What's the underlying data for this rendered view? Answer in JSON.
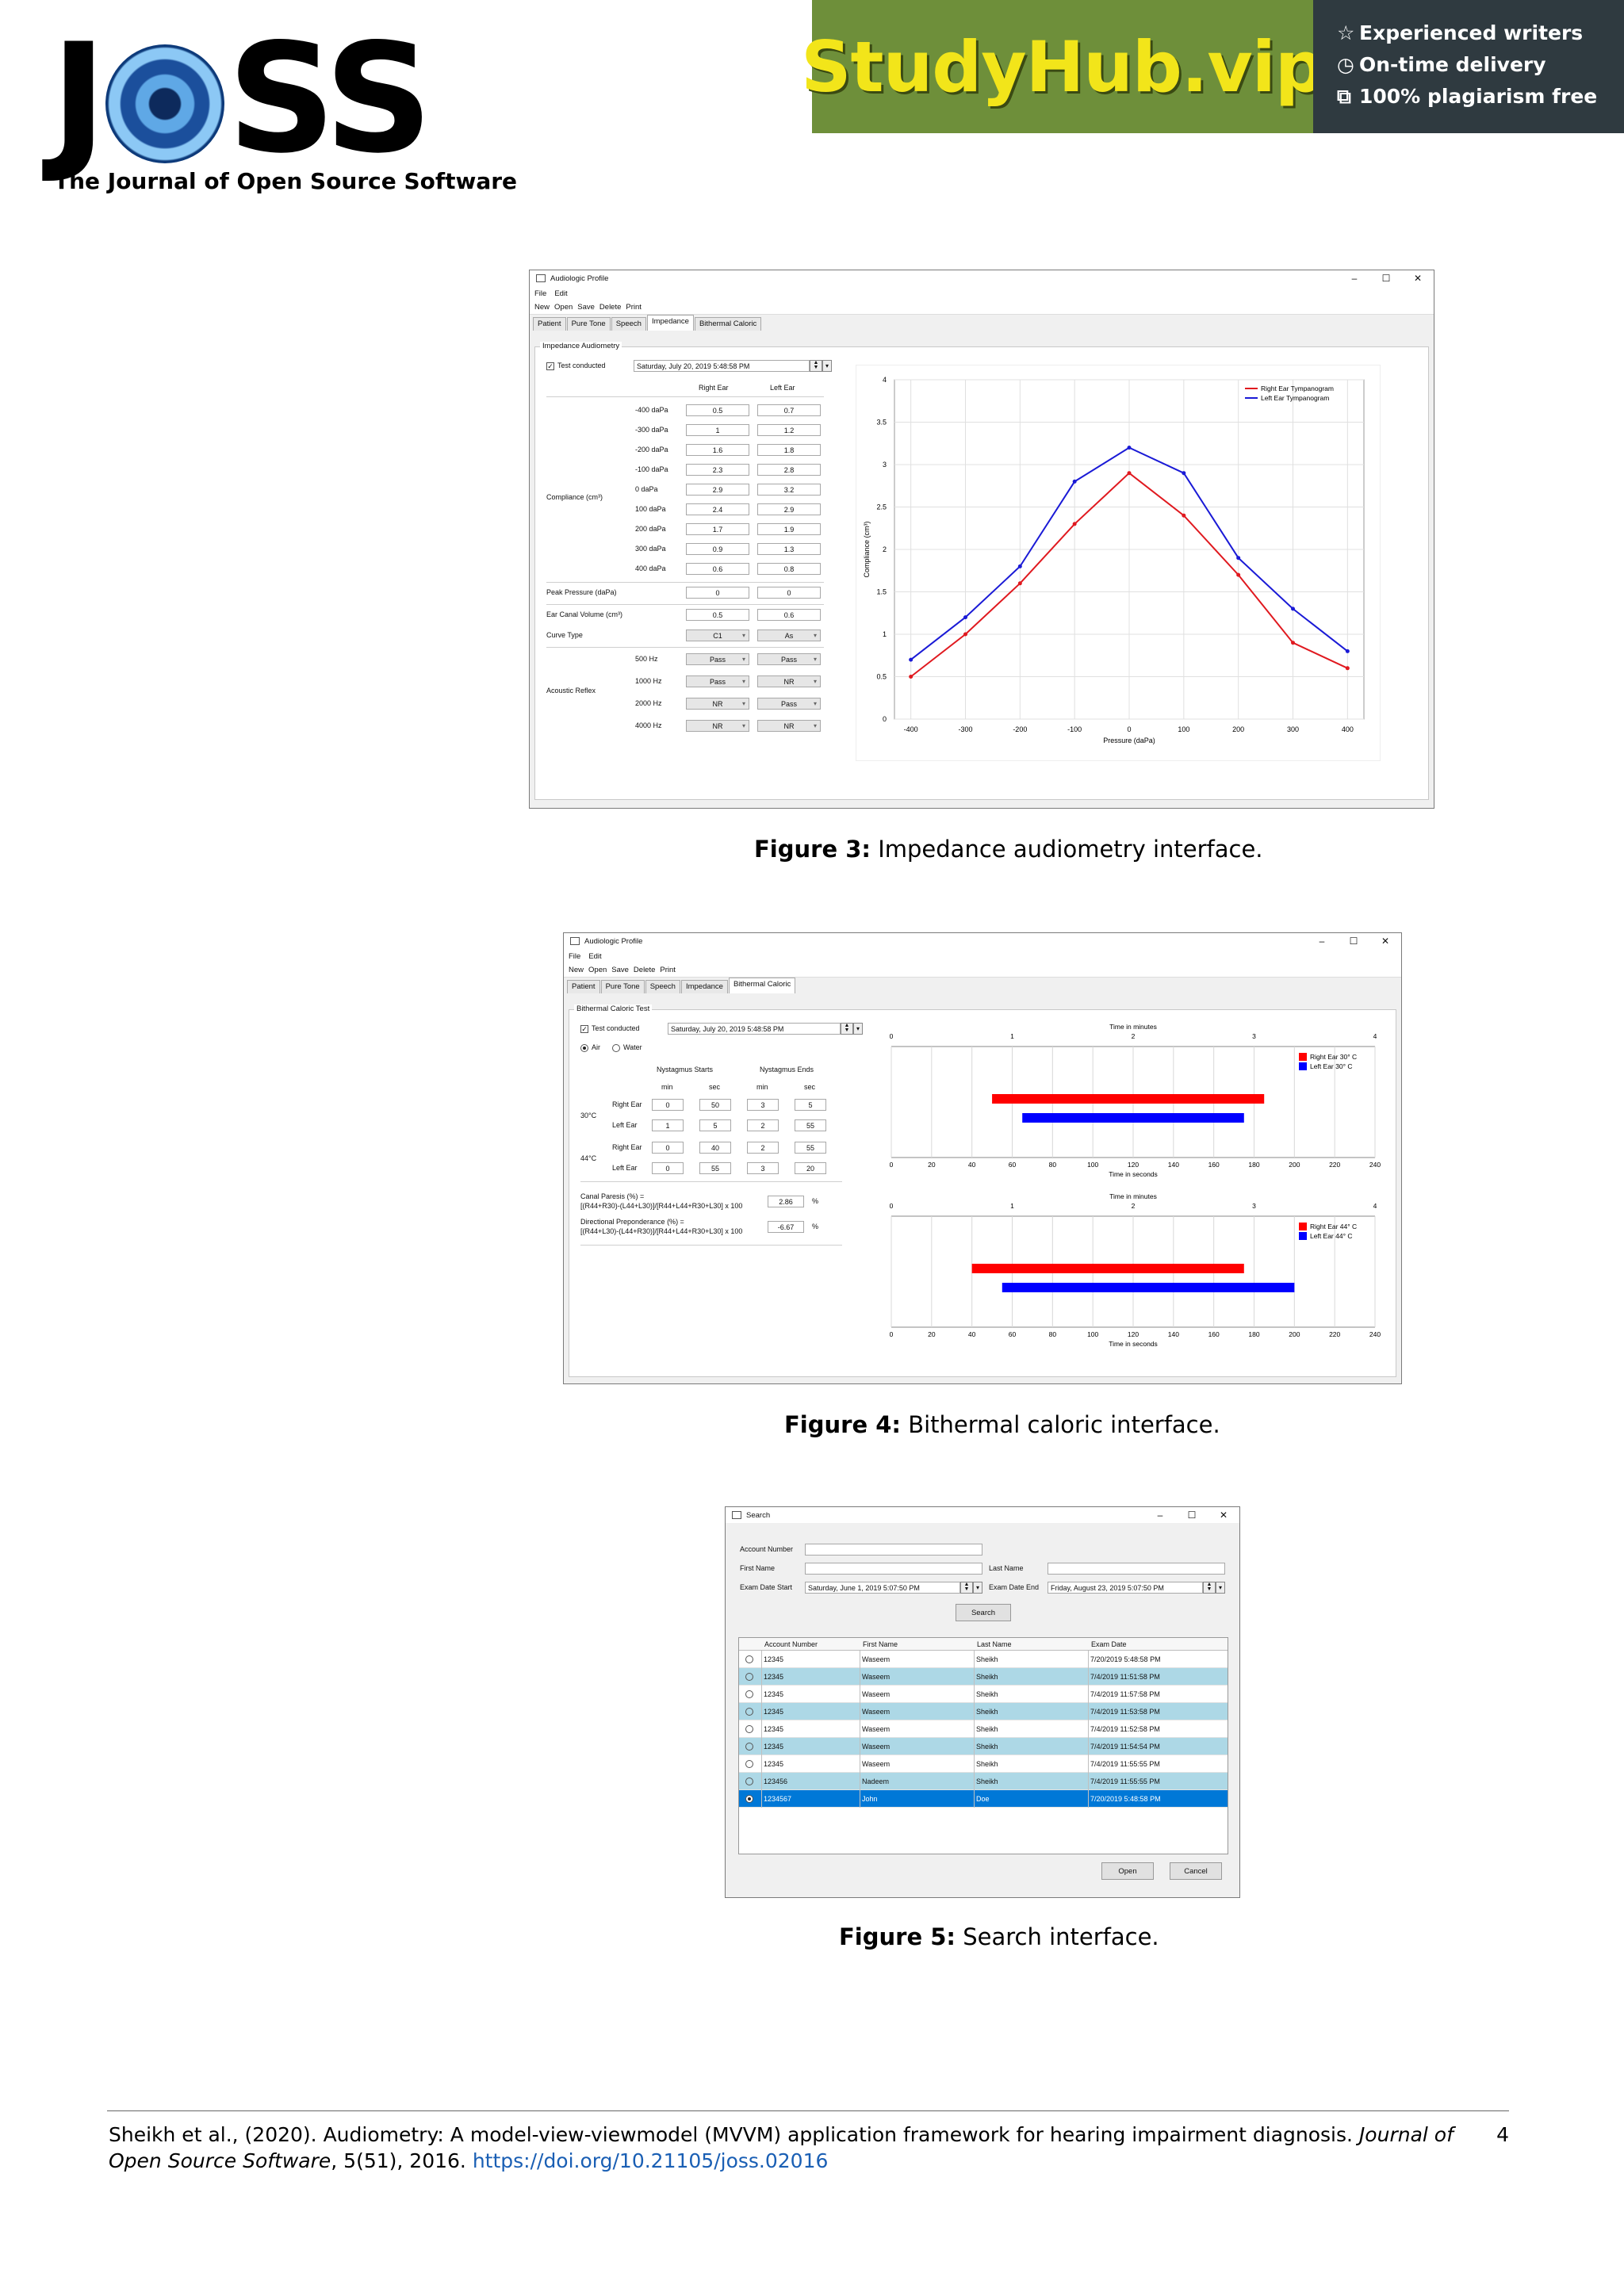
{
  "header": {
    "logo_text": "JOSS",
    "tagline": "The Journal of Open Source Software",
    "ad": {
      "brand": "StudyHub.vip",
      "lines": [
        "Experienced writers",
        "On-time delivery",
        "100% plagiarism free"
      ],
      "icons": [
        "star-icon",
        "clock-icon",
        "copy-icon"
      ]
    }
  },
  "window": {
    "title": "Audiologic Profile",
    "menu": [
      "File",
      "Edit"
    ],
    "toolbar": [
      "New",
      "Open",
      "Save",
      "Delete",
      "Print"
    ],
    "tabs": [
      "Patient",
      "Pure Tone",
      "Speech",
      "Impedance",
      "Bithermal Caloric"
    ]
  },
  "impedance": {
    "group": "Impedance Audiometry",
    "test_conducted": "Test conducted",
    "date": "Saturday, July 20, 2019 5:48:58 PM",
    "col_right": "Right Ear",
    "col_left": "Left Ear",
    "compliance_label": "Compliance (cm³)",
    "rows": [
      {
        "p": "-400 daPa",
        "r": "0.5",
        "l": "0.7"
      },
      {
        "p": "-300 daPa",
        "r": "1",
        "l": "1.2"
      },
      {
        "p": "-200 daPa",
        "r": "1.6",
        "l": "1.8"
      },
      {
        "p": "-100 daPa",
        "r": "2.3",
        "l": "2.8"
      },
      {
        "p": "0 daPa",
        "r": "2.9",
        "l": "3.2"
      },
      {
        "p": "100 daPa",
        "r": "2.4",
        "l": "2.9"
      },
      {
        "p": "200 daPa",
        "r": "1.7",
        "l": "1.9"
      },
      {
        "p": "300 daPa",
        "r": "0.9",
        "l": "1.3"
      },
      {
        "p": "400 daPa",
        "r": "0.6",
        "l": "0.8"
      }
    ],
    "peak_label": "Peak Pressure (daPa)",
    "peak_r": "0",
    "peak_l": "0",
    "ecv_label": "Ear Canal Volume (cm³)",
    "ecv_r": "0.5",
    "ecv_l": "0.6",
    "curve_label": "Curve Type",
    "curve_r": "C1",
    "curve_l": "As",
    "reflex_label": "Acoustic Reflex",
    "reflex": [
      {
        "f": "500 Hz",
        "r": "Pass",
        "l": "Pass"
      },
      {
        "f": "1000 Hz",
        "r": "Pass",
        "l": "NR"
      },
      {
        "f": "2000 Hz",
        "r": "NR",
        "l": "Pass"
      },
      {
        "f": "4000 Hz",
        "r": "NR",
        "l": "NR"
      }
    ]
  },
  "caloric": {
    "group": "Bithermal Caloric Test",
    "test_conducted": "Test conducted",
    "date": "Saturday, July 20, 2019 5:48:58 PM",
    "air": "Air",
    "water": "Water",
    "col_start": "Nystagmus Starts",
    "col_end": "Nystagmus Ends",
    "min": "min",
    "sec": "sec",
    "t30": "30°C",
    "t44": "44°C",
    "right_ear": "Right Ear",
    "left_ear": "Left Ear",
    "r30": [
      "0",
      "50",
      "3",
      "5"
    ],
    "l30": [
      "1",
      "5",
      "2",
      "55"
    ],
    "r44": [
      "0",
      "40",
      "2",
      "55"
    ],
    "l44": [
      "0",
      "55",
      "3",
      "20"
    ],
    "cp_label1": "Canal Paresis (%) =",
    "cp_label2": "[(R44+R30)-(L44+L30)]/[R44+L44+R30+L30] x 100",
    "cp_value": "2.86",
    "dp_label1": "Directional Preponderance (%) =",
    "dp_label2": "[(R44+L30)-(L44+R30)]/[R44+L44+R30+L30] x 100",
    "dp_value": "-6.67",
    "pct": "%"
  },
  "search": {
    "title": "Search",
    "account_label": "Account Number",
    "first_label": "First Name",
    "last_label": "Last Name",
    "start_label": "Exam Date Start",
    "start_value": "Saturday, June 1, 2019 5:07:50 PM",
    "end_label": "Exam Date End",
    "end_value": "Friday, August 23, 2019 5:07:50 PM",
    "search_button": "Search",
    "columns": [
      "Account Number",
      "First Name",
      "Last Name",
      "Exam Date"
    ],
    "rows": [
      [
        "12345",
        "Waseem",
        "Sheikh",
        "7/20/2019 5:48:58 PM"
      ],
      [
        "12345",
        "Waseem",
        "Sheikh",
        "7/4/2019 11:51:58 PM"
      ],
      [
        "12345",
        "Waseem",
        "Sheikh",
        "7/4/2019 11:57:58 PM"
      ],
      [
        "12345",
        "Waseem",
        "Sheikh",
        "7/4/2019 11:53:58 PM"
      ],
      [
        "12345",
        "Waseem",
        "Sheikh",
        "7/4/2019 11:52:58 PM"
      ],
      [
        "12345",
        "Waseem",
        "Sheikh",
        "7/4/2019 11:54:54 PM"
      ],
      [
        "12345",
        "Waseem",
        "Sheikh",
        "7/4/2019 11:55:55 PM"
      ],
      [
        "123456",
        "Nadeem",
        "Sheikh",
        "7/4/2019 11:55:55 PM"
      ],
      [
        "1234567",
        "John",
        "Doe",
        "7/20/2019 5:48:58 PM"
      ]
    ],
    "open_button": "Open",
    "cancel_button": "Cancel"
  },
  "captions": {
    "fig3_label": "Figure 3:",
    "fig3_text": "Impedance audiometry interface.",
    "fig4_label": "Figure 4:",
    "fig4_text": "Bithermal caloric interface.",
    "fig5_label": "Figure 5:",
    "fig5_text": "Search interface."
  },
  "footer": {
    "text1": "Sheikh et al., (2020). Audiometry: A model-view-viewmodel (MVVM) application framework for hearing impairment diagnosis.",
    "journal1": "Journal of",
    "journal2": "Open Source Software",
    "text2": ", 5(51), 2016.",
    "doi": "https://doi.org/10.21105/joss.02016",
    "page": "4"
  },
  "chart_data": [
    {
      "type": "line",
      "xlabel": "Pressure (daPa)",
      "ylabel": "Compliance (cm³)",
      "x": [
        -400,
        -300,
        -200,
        -100,
        0,
        100,
        200,
        300,
        400
      ],
      "xlim": [
        -430,
        430
      ],
      "ylim": [
        0,
        4
      ],
      "xticks": [
        -400,
        -300,
        -200,
        -100,
        0,
        100,
        200,
        300,
        400
      ],
      "yticks": [
        0,
        0.5,
        1,
        1.5,
        2,
        2.5,
        3,
        3.5,
        4
      ],
      "grid": true,
      "legend_position": "top-right",
      "series": [
        {
          "name": "Right Ear Tympanogram",
          "color": "#e0191f",
          "values": [
            0.5,
            1,
            1.6,
            2.3,
            2.9,
            2.4,
            1.7,
            0.9,
            0.6
          ]
        },
        {
          "name": "Left Ear Tympanogram",
          "color": "#1a1ad6",
          "values": [
            0.7,
            1.2,
            1.8,
            2.8,
            3.2,
            2.9,
            1.9,
            1.3,
            0.8
          ]
        }
      ]
    },
    {
      "type": "bar",
      "orientation": "horizontal",
      "title": "Time in minutes",
      "xlabel": "Time in seconds",
      "xlim": [
        0,
        240
      ],
      "xticks": [
        0,
        20,
        40,
        60,
        80,
        100,
        120,
        140,
        160,
        180,
        200,
        220,
        240
      ],
      "top_ticks": [
        0,
        1,
        2,
        3,
        4
      ],
      "legend_position": "top-right",
      "series": [
        {
          "name": "Right Ear 30° C",
          "color": "#ff0000",
          "start": 50,
          "end": 185
        },
        {
          "name": "Left Ear 30° C",
          "color": "#0000ff",
          "start": 65,
          "end": 175
        }
      ]
    },
    {
      "type": "bar",
      "orientation": "horizontal",
      "title": "Time in minutes",
      "xlabel": "Time in seconds",
      "xlim": [
        0,
        240
      ],
      "xticks": [
        0,
        20,
        40,
        60,
        80,
        100,
        120,
        140,
        160,
        180,
        200,
        220,
        240
      ],
      "top_ticks": [
        0,
        1,
        2,
        3,
        4
      ],
      "legend_position": "top-right",
      "series": [
        {
          "name": "Right Ear 44° C",
          "color": "#ff0000",
          "start": 40,
          "end": 175
        },
        {
          "name": "Left Ear 44° C",
          "color": "#0000ff",
          "start": 55,
          "end": 200
        }
      ]
    }
  ]
}
